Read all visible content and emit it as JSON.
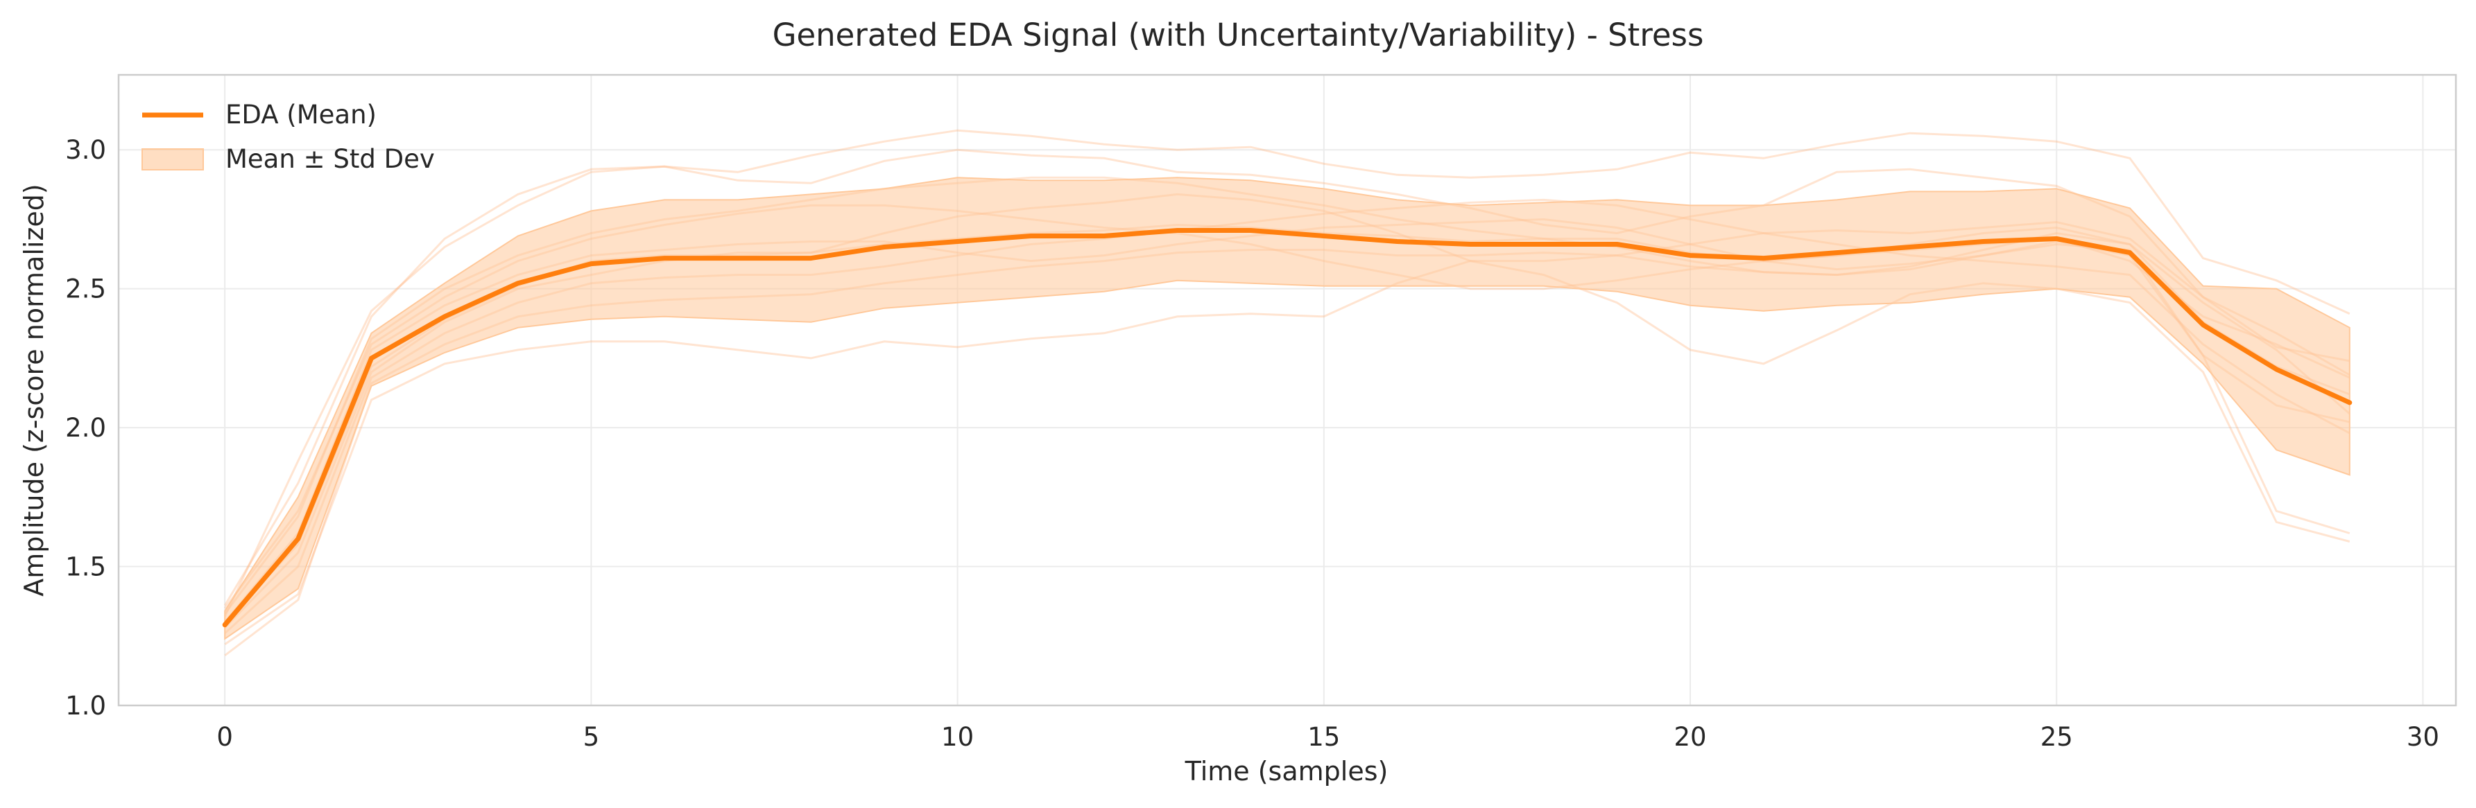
{
  "chart_data": {
    "type": "line",
    "title": "Generated EDA Signal (with Uncertainty/Variability) - Stress",
    "xlabel": "Time (samples)",
    "ylabel": "Amplitude (z-score normalized)",
    "xlim": [
      -1.45,
      30.45
    ],
    "ylim": [
      1.0,
      3.27
    ],
    "xticks": [
      0,
      5,
      10,
      15,
      20,
      25,
      30
    ],
    "yticks": [
      1.0,
      1.5,
      2.0,
      2.5,
      3.0
    ],
    "grid": true,
    "legend_position": "top-left",
    "colors": {
      "mean": "#ff7f0e",
      "band": "#ffc89a",
      "sample": "#ffb27a"
    },
    "x": [
      0,
      1,
      2,
      3,
      4,
      5,
      6,
      7,
      8,
      9,
      10,
      11,
      12,
      13,
      14,
      15,
      16,
      17,
      18,
      19,
      20,
      21,
      22,
      23,
      24,
      25,
      26,
      27,
      28,
      29
    ],
    "series": [
      {
        "name": "EDA (Mean)",
        "kind": "mean",
        "values": [
          1.29,
          1.6,
          2.25,
          2.4,
          2.52,
          2.59,
          2.61,
          2.61,
          2.61,
          2.65,
          2.67,
          2.69,
          2.69,
          2.71,
          2.71,
          2.69,
          2.67,
          2.66,
          2.66,
          2.66,
          2.62,
          2.61,
          2.63,
          2.65,
          2.67,
          2.68,
          2.63,
          2.37,
          2.21,
          2.09
        ]
      },
      {
        "name": "Mean ± Std Dev",
        "kind": "band",
        "lower": [
          1.24,
          1.42,
          2.15,
          2.27,
          2.36,
          2.39,
          2.4,
          2.39,
          2.38,
          2.43,
          2.45,
          2.47,
          2.49,
          2.53,
          2.52,
          2.51,
          2.51,
          2.51,
          2.51,
          2.49,
          2.44,
          2.42,
          2.44,
          2.45,
          2.48,
          2.5,
          2.47,
          2.23,
          1.92,
          1.83
        ],
        "upper": [
          1.34,
          1.75,
          2.34,
          2.52,
          2.69,
          2.78,
          2.82,
          2.82,
          2.84,
          2.86,
          2.9,
          2.89,
          2.89,
          2.9,
          2.89,
          2.86,
          2.82,
          2.8,
          2.81,
          2.82,
          2.8,
          2.8,
          2.82,
          2.85,
          2.85,
          2.86,
          2.79,
          2.51,
          2.5,
          2.36
        ]
      }
    ],
    "samples": [
      [
        1.22,
        1.4,
        2.1,
        2.23,
        2.28,
        2.31,
        2.31,
        2.28,
        2.25,
        2.31,
        2.29,
        2.32,
        2.34,
        2.4,
        2.41,
        2.4,
        2.52,
        2.6,
        2.55,
        2.45,
        2.28,
        2.23,
        2.35,
        2.48,
        2.52,
        2.5,
        2.45,
        2.2,
        1.66,
        1.59
      ],
      [
        1.32,
        1.88,
        2.42,
        2.65,
        2.8,
        2.92,
        2.94,
        2.89,
        2.88,
        2.96,
        3.0,
        2.98,
        2.97,
        2.92,
        2.91,
        2.88,
        2.84,
        2.79,
        2.73,
        2.7,
        2.76,
        2.8,
        2.92,
        2.93,
        2.9,
        2.87,
        2.76,
        2.47,
        2.29,
        2.24
      ],
      [
        1.28,
        1.55,
        2.2,
        2.38,
        2.5,
        2.55,
        2.6,
        2.63,
        2.63,
        2.7,
        2.76,
        2.79,
        2.81,
        2.84,
        2.82,
        2.78,
        2.7,
        2.6,
        2.6,
        2.62,
        2.66,
        2.7,
        2.71,
        2.7,
        2.72,
        2.74,
        2.68,
        2.47,
        2.34,
        2.19
      ],
      [
        1.3,
        1.62,
        2.28,
        2.44,
        2.55,
        2.62,
        2.64,
        2.66,
        2.67,
        2.67,
        2.63,
        2.6,
        2.62,
        2.66,
        2.69,
        2.72,
        2.73,
        2.74,
        2.75,
        2.72,
        2.66,
        2.6,
        2.57,
        2.59,
        2.62,
        2.66,
        2.64,
        2.26,
        1.7,
        1.62
      ],
      [
        1.35,
        1.7,
        2.3,
        2.47,
        2.6,
        2.68,
        2.73,
        2.77,
        2.8,
        2.8,
        2.78,
        2.75,
        2.72,
        2.7,
        2.66,
        2.6,
        2.55,
        2.5,
        2.5,
        2.53,
        2.57,
        2.6,
        2.62,
        2.66,
        2.7,
        2.72,
        2.66,
        2.45,
        2.28,
        2.05
      ],
      [
        1.26,
        1.5,
        2.18,
        2.34,
        2.45,
        2.52,
        2.54,
        2.55,
        2.55,
        2.58,
        2.62,
        2.66,
        2.68,
        2.71,
        2.74,
        2.77,
        2.79,
        2.81,
        2.82,
        2.8,
        2.75,
        2.7,
        2.66,
        2.62,
        2.6,
        2.58,
        2.55,
        2.3,
        2.12,
        1.98
      ],
      [
        1.33,
        1.68,
        2.32,
        2.5,
        2.62,
        2.7,
        2.75,
        2.78,
        2.82,
        2.86,
        2.88,
        2.9,
        2.9,
        2.88,
        2.84,
        2.8,
        2.75,
        2.71,
        2.68,
        2.65,
        2.6,
        2.56,
        2.55,
        2.58,
        2.64,
        2.7,
        2.66,
        2.38,
        2.22,
        2.12
      ],
      [
        1.18,
        1.38,
        2.16,
        2.3,
        2.4,
        2.44,
        2.46,
        2.47,
        2.48,
        2.52,
        2.55,
        2.58,
        2.6,
        2.63,
        2.64,
        2.64,
        2.62,
        2.62,
        2.63,
        2.62,
        2.58,
        2.56,
        2.55,
        2.57,
        2.62,
        2.67,
        2.62,
        2.26,
        2.08,
        2.02
      ],
      [
        1.36,
        1.8,
        2.4,
        2.68,
        2.84,
        2.93,
        2.94,
        2.92,
        2.98,
        3.03,
        3.07,
        3.05,
        3.02,
        3.0,
        3.01,
        2.95,
        2.91,
        2.9,
        2.91,
        2.93,
        2.99,
        2.97,
        3.02,
        3.06,
        3.05,
        3.03,
        2.97,
        2.61,
        2.53,
        2.41
      ],
      [
        1.3,
        1.58,
        2.22,
        2.39,
        2.51,
        2.6,
        2.62,
        2.62,
        2.63,
        2.66,
        2.68,
        2.7,
        2.71,
        2.73,
        2.72,
        2.7,
        2.69,
        2.67,
        2.68,
        2.68,
        2.63,
        2.6,
        2.62,
        2.64,
        2.66,
        2.68,
        2.6,
        2.4,
        2.3,
        2.18
      ]
    ]
  }
}
